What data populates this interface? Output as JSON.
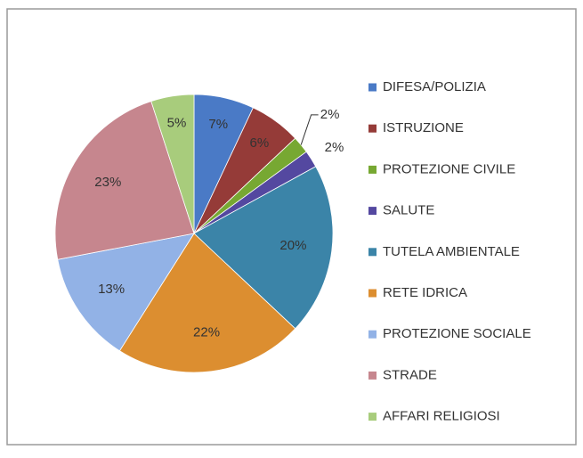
{
  "chart_data": {
    "type": "pie",
    "categories": [
      "DIFESA/POLIZIA",
      "ISTRUZIONE",
      "PROTEZIONE CIVILE",
      "SALUTE",
      "TUTELA AMBIENTALE",
      "RETE IDRICA",
      "PROTEZIONE SOCIALE",
      "STRADE",
      "AFFARI RELIGIOSI"
    ],
    "values": [
      7,
      6,
      2,
      2,
      20,
      22,
      13,
      23,
      5
    ],
    "value_labels": [
      "7%",
      "6%",
      "2%",
      "2%",
      "20%",
      "22%",
      "13%",
      "23%",
      "5%"
    ],
    "colors": [
      "#4a7ac6",
      "#953b38",
      "#77a832",
      "#5448a0",
      "#3b84a8",
      "#dc8e30",
      "#92b2e6",
      "#c6868e",
      "#a8cc7c"
    ],
    "legend": "right"
  }
}
